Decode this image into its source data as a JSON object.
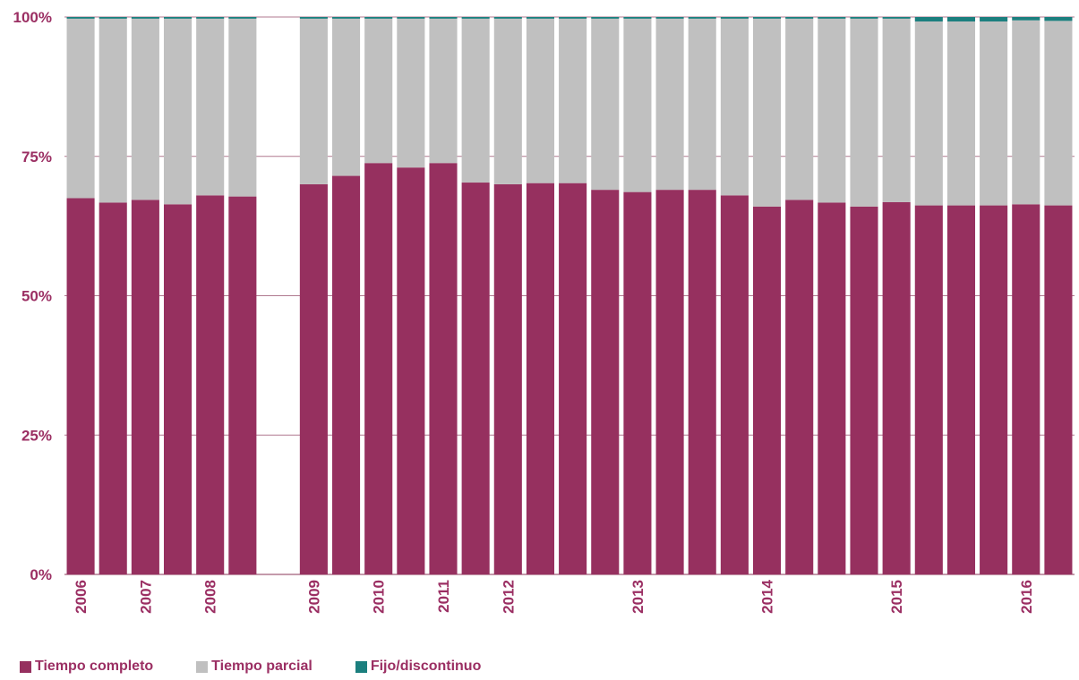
{
  "colors": {
    "completo": "#96305f",
    "parcial": "#c0c0c0",
    "fijo": "#1b7f7e",
    "text": "#9b2f63",
    "grid": "#b0798f"
  },
  "chart_data": {
    "type": "bar",
    "stacked": true,
    "ylim": [
      0,
      100
    ],
    "yticks": [
      "0%",
      "25%",
      "50%",
      "75%",
      "100%"
    ],
    "x_labels": [
      {
        "label": "2006",
        "bar": 0
      },
      {
        "label": "2007",
        "bar": 2
      },
      {
        "label": "2008",
        "bar": 4
      },
      {
        "label": "2009",
        "bar": 6
      },
      {
        "label": "2010",
        "bar": 8
      },
      {
        "label": "2011",
        "bar": 10
      },
      {
        "label": "2012",
        "bar": 12
      },
      {
        "label": "2013",
        "bar": 16
      },
      {
        "label": "2014",
        "bar": 20
      },
      {
        "label": "2015",
        "bar": 24
      },
      {
        "label": "2016",
        "bar": 28
      }
    ],
    "gap_after_bar": 5,
    "series": [
      {
        "name": "Tiempo completo",
        "color": "#96305f",
        "values": [
          67.5,
          66.7,
          67.2,
          66.4,
          68.0,
          67.8,
          70.0,
          71.5,
          73.8,
          73.0,
          73.8,
          70.3,
          70.0,
          70.2,
          70.2,
          69.0,
          68.6,
          69.0,
          69.0,
          68.0,
          66.0,
          67.2,
          66.7,
          66.0,
          66.8,
          66.2,
          66.2,
          66.2,
          66.4,
          66.2
        ]
      },
      {
        "name": "Tiempo parcial",
        "color": "#c0c0c0",
        "values": [
          32.2,
          33.0,
          32.5,
          33.3,
          31.7,
          31.9,
          29.7,
          28.2,
          25.9,
          26.7,
          25.9,
          29.4,
          29.7,
          29.5,
          29.5,
          30.7,
          31.1,
          30.7,
          30.7,
          31.7,
          33.7,
          32.5,
          33.0,
          33.7,
          32.9,
          33.0,
          33.0,
          33.0,
          33.0,
          33.1
        ]
      },
      {
        "name": "Fijo/discontinuo",
        "color": "#1b7f7e",
        "values": [
          0.3,
          0.3,
          0.3,
          0.3,
          0.3,
          0.3,
          0.3,
          0.3,
          0.3,
          0.3,
          0.3,
          0.3,
          0.3,
          0.3,
          0.3,
          0.3,
          0.3,
          0.3,
          0.3,
          0.3,
          0.3,
          0.3,
          0.3,
          0.3,
          0.3,
          0.8,
          0.8,
          0.8,
          0.6,
          0.7
        ]
      }
    ],
    "legend": {
      "position": "bottom-left",
      "items": [
        {
          "label": "Tiempo completo",
          "color": "#96305f"
        },
        {
          "label": "Tiempo parcial",
          "color": "#c0c0c0"
        },
        {
          "label": "Fijo/discontinuo",
          "color": "#1b7f7e"
        }
      ]
    },
    "grid": true
  }
}
